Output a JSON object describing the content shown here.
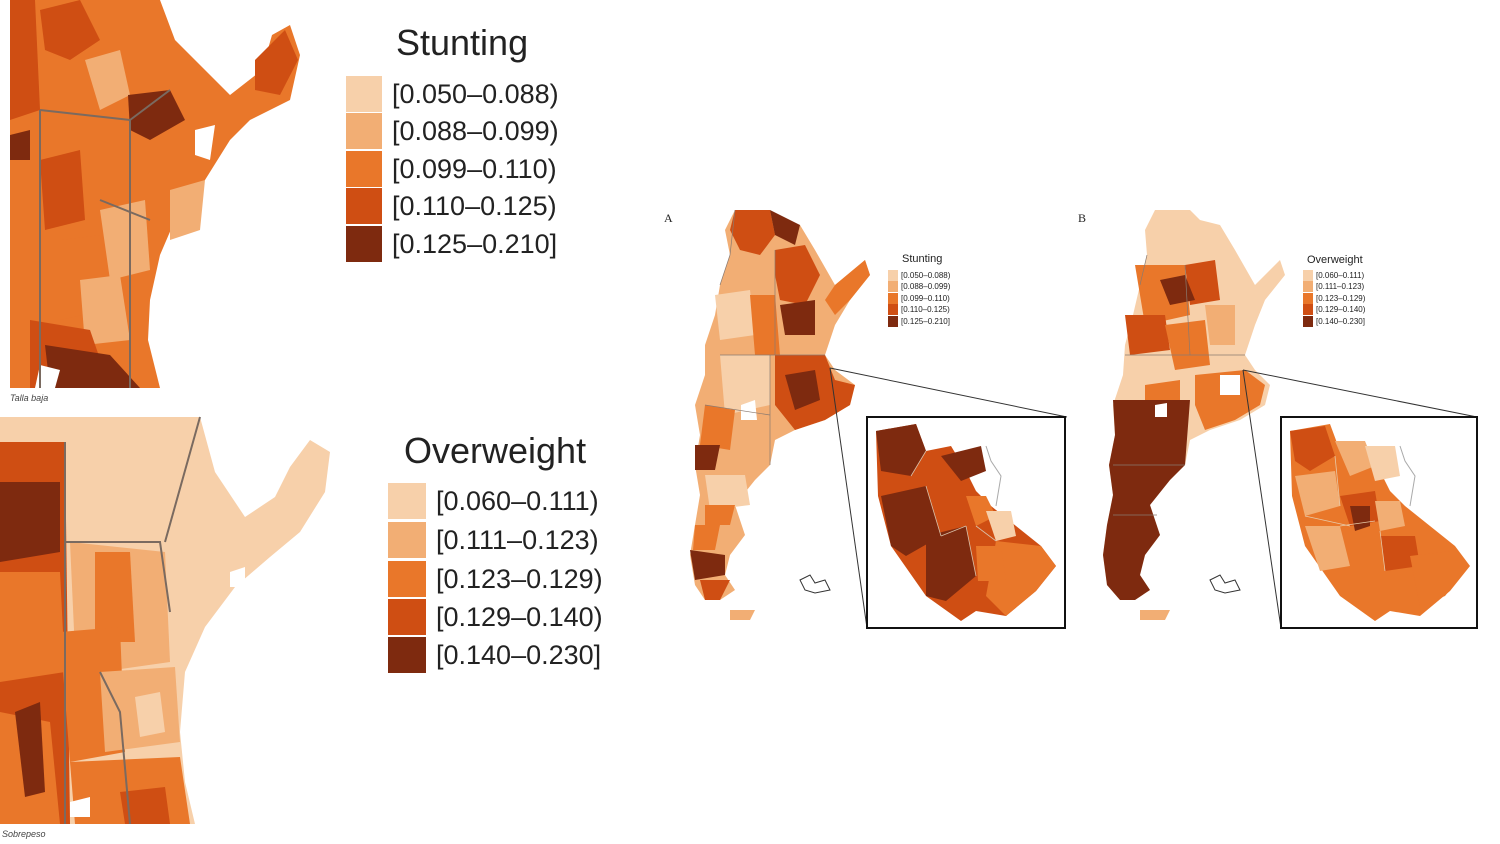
{
  "zoom_panels": [
    {
      "caption": "Talla baja",
      "legend_title": "Stunting",
      "legend_items": [
        {
          "label": "[0.050–0.088)",
          "color": "#f7d0aa"
        },
        {
          "label": "[0.088–0.099)",
          "color": "#f2ae74"
        },
        {
          "label": "[0.099–0.110)",
          "color": "#e9772a"
        },
        {
          "label": "[0.110–0.125)",
          "color": "#cf4e13"
        },
        {
          "label": "[0.125–0.210]",
          "color": "#7e2a0f"
        }
      ]
    },
    {
      "caption": "Sobrepeso",
      "legend_title": "Overweight",
      "legend_items": [
        {
          "label": "[0.060–0.111)",
          "color": "#f7d0aa"
        },
        {
          "label": "[0.111–0.123)",
          "color": "#f2ae74"
        },
        {
          "label": "[0.123–0.129)",
          "color": "#e9772a"
        },
        {
          "label": "[0.129–0.140)",
          "color": "#cf4e13"
        },
        {
          "label": "[0.140–0.230]",
          "color": "#7e2a0f"
        }
      ]
    }
  ],
  "figure_panels": [
    {
      "letter": "A",
      "legend_title": "Stunting",
      "legend_items": [
        {
          "label": "[0.050–0.088)",
          "color": "#f7d0aa"
        },
        {
          "label": "[0.088–0.099)",
          "color": "#f2ae74"
        },
        {
          "label": "[0.099–0.110)",
          "color": "#e9772a"
        },
        {
          "label": "[0.110–0.125)",
          "color": "#cf4e13"
        },
        {
          "label": "[0.125–0.210]",
          "color": "#7e2a0f"
        }
      ]
    },
    {
      "letter": "B",
      "legend_title": "Overweight",
      "legend_items": [
        {
          "label": "[0.060–0.111)",
          "color": "#f7d0aa"
        },
        {
          "label": "[0.111–0.123)",
          "color": "#f2ae74"
        },
        {
          "label": "[0.123–0.129)",
          "color": "#e9772a"
        },
        {
          "label": "[0.129–0.140)",
          "color": "#cf4e13"
        },
        {
          "label": "[0.140–0.230]",
          "color": "#7e2a0f"
        }
      ]
    }
  ]
}
